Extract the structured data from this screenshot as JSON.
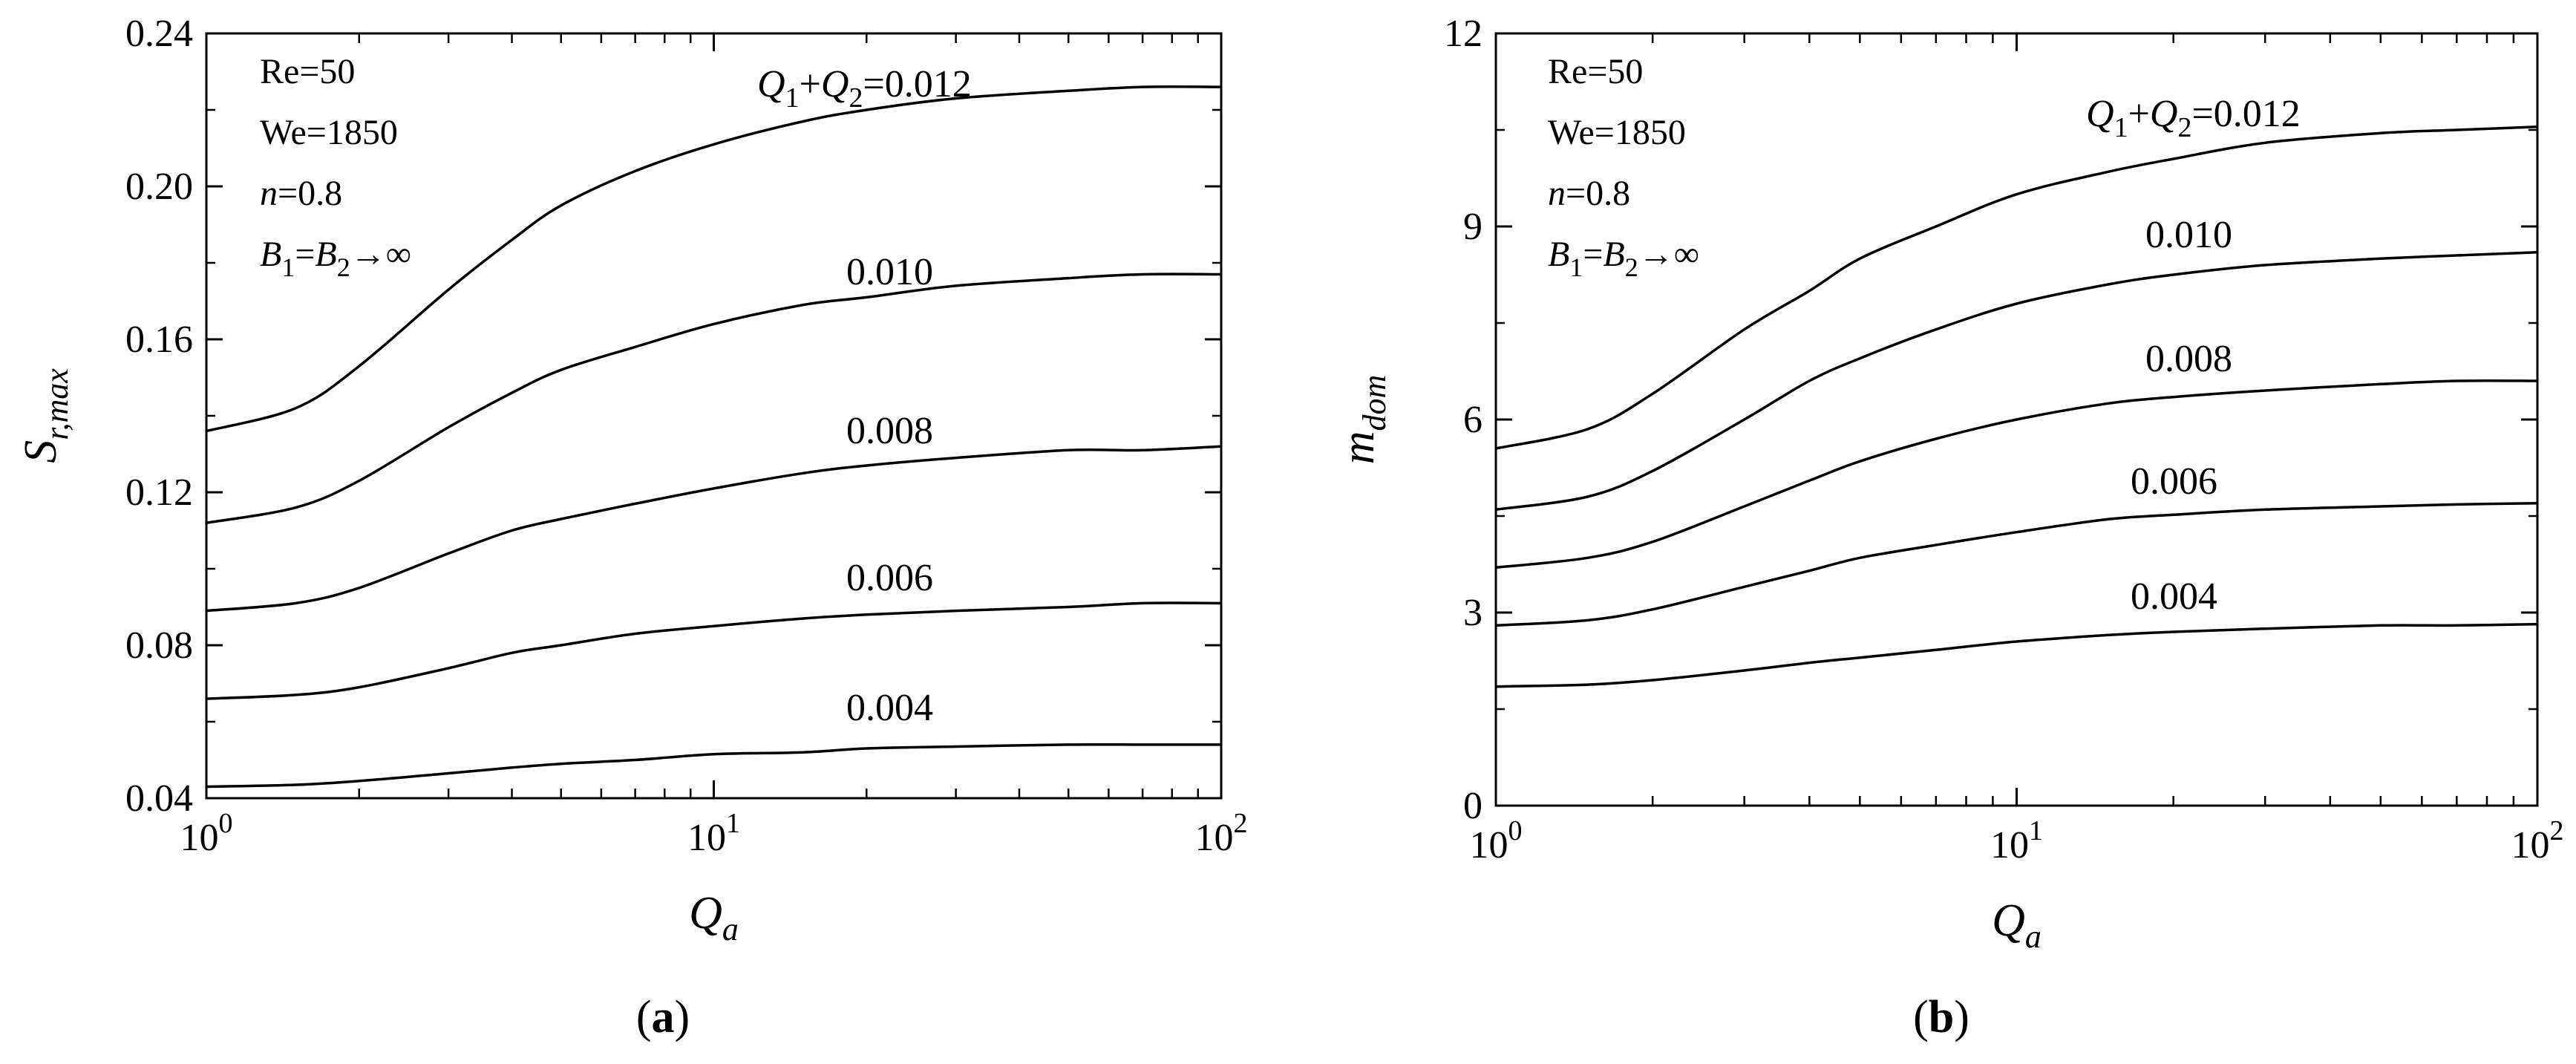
{
  "chart_data": [
    {
      "type": "line",
      "panel": "a",
      "caption": {
        "open": "(",
        "letter": "a",
        "close": ")"
      },
      "xlabel": {
        "main": "Q",
        "sub": "a"
      },
      "ylabel": {
        "main": "S",
        "sub": "r,max"
      },
      "xscale": "log",
      "xlim": [
        1,
        100
      ],
      "ylim": [
        0.04,
        0.24
      ],
      "yticks": [
        "0.04",
        "0.08",
        "0.12",
        "0.16",
        "0.20",
        "0.24"
      ],
      "xticks": [
        {
          "base": "10",
          "exp": "0"
        },
        {
          "base": "10",
          "exp": "1"
        },
        {
          "base": "10",
          "exp": "2"
        }
      ],
      "grid": false,
      "params": {
        "re": "Re=50",
        "we": "We=1850",
        "n_var": "n",
        "n_val": "=0.8",
        "b_var": "B",
        "b1_sub": "1",
        "b_eq": "=",
        "b2_sub": "2",
        "b_arrow": "→∞"
      },
      "series": [
        {
          "label": "0.012",
          "label_prefix": {
            "q": "Q",
            "s1": "1",
            "plus": "+",
            "s2": "2",
            "eq": "="
          },
          "x": [
            1,
            1.5,
            2,
            3,
            4,
            5,
            7,
            10,
            15,
            20,
            30,
            50,
            70,
            100
          ],
          "values": [
            0.136,
            0.142,
            0.153,
            0.173,
            0.186,
            0.195,
            0.204,
            0.211,
            0.217,
            0.22,
            0.223,
            0.225,
            0.226,
            0.226
          ]
        },
        {
          "label": "0.010",
          "x": [
            1,
            1.5,
            2,
            3,
            4,
            5,
            7,
            10,
            15,
            20,
            30,
            50,
            70,
            100
          ],
          "values": [
            0.112,
            0.116,
            0.123,
            0.137,
            0.146,
            0.152,
            0.158,
            0.164,
            0.169,
            0.171,
            0.174,
            0.176,
            0.177,
            0.177
          ]
        },
        {
          "label": "0.008",
          "x": [
            1,
            1.5,
            2,
            3,
            4,
            5,
            7,
            10,
            15,
            20,
            30,
            50,
            70,
            100
          ],
          "values": [
            0.089,
            0.091,
            0.095,
            0.104,
            0.11,
            0.113,
            0.117,
            0.121,
            0.125,
            0.127,
            0.129,
            0.131,
            0.131,
            0.132
          ]
        },
        {
          "label": "0.006",
          "x": [
            1,
            1.5,
            2,
            3,
            4,
            5,
            7,
            10,
            15,
            20,
            30,
            50,
            70,
            100
          ],
          "values": [
            0.066,
            0.067,
            0.069,
            0.074,
            0.078,
            0.08,
            0.083,
            0.085,
            0.087,
            0.088,
            0.089,
            0.09,
            0.091,
            0.091
          ]
        },
        {
          "label": "0.004",
          "x": [
            1,
            1.5,
            2,
            3,
            4,
            5,
            7,
            10,
            15,
            20,
            30,
            50,
            70,
            100
          ],
          "values": [
            0.043,
            0.0435,
            0.0445,
            0.0465,
            0.048,
            0.049,
            0.05,
            0.0515,
            0.052,
            0.053,
            0.0535,
            0.054,
            0.054,
            0.054
          ]
        }
      ]
    },
    {
      "type": "line",
      "panel": "b",
      "caption": {
        "open": "(",
        "letter": "b",
        "close": ")"
      },
      "xlabel": {
        "main": "Q",
        "sub": "a"
      },
      "ylabel": {
        "main": "m",
        "sub": "dom"
      },
      "xscale": "log",
      "xlim": [
        1,
        100
      ],
      "ylim": [
        0,
        12
      ],
      "yticks": [
        "0",
        "3",
        "6",
        "9",
        "12"
      ],
      "xticks": [
        {
          "base": "10",
          "exp": "0"
        },
        {
          "base": "10",
          "exp": "1"
        },
        {
          "base": "10",
          "exp": "2"
        }
      ],
      "grid": false,
      "params": {
        "re": "Re=50",
        "we": "We=1850",
        "n_var": "n",
        "n_val": "=0.8",
        "b_var": "B",
        "b1_sub": "1",
        "b_eq": "=",
        "b2_sub": "2",
        "b_arrow": "→∞"
      },
      "series": [
        {
          "label": "0.012",
          "label_prefix": {
            "q": "Q",
            "s1": "1",
            "plus": "+",
            "s2": "2",
            "eq": "="
          },
          "x": [
            1,
            1.5,
            2,
            3,
            4,
            5,
            7,
            10,
            15,
            20,
            30,
            50,
            70,
            100
          ],
          "values": [
            5.55,
            5.85,
            6.4,
            7.4,
            8.0,
            8.5,
            9.0,
            9.5,
            9.85,
            10.05,
            10.3,
            10.45,
            10.5,
            10.55
          ]
        },
        {
          "label": "0.010",
          "x": [
            1,
            1.5,
            2,
            3,
            4,
            5,
            7,
            10,
            15,
            20,
            30,
            50,
            70,
            100
          ],
          "values": [
            4.6,
            4.8,
            5.2,
            6.0,
            6.6,
            6.95,
            7.4,
            7.8,
            8.1,
            8.25,
            8.4,
            8.5,
            8.55,
            8.6
          ]
        },
        {
          "label": "0.008",
          "x": [
            1,
            1.5,
            2,
            3,
            4,
            5,
            7,
            10,
            15,
            20,
            30,
            50,
            70,
            100
          ],
          "values": [
            3.7,
            3.85,
            4.1,
            4.65,
            5.05,
            5.35,
            5.7,
            6.0,
            6.25,
            6.35,
            6.45,
            6.55,
            6.6,
            6.6
          ]
        },
        {
          "label": "0.006",
          "x": [
            1,
            1.5,
            2,
            3,
            4,
            5,
            7,
            10,
            15,
            20,
            30,
            50,
            70,
            100
          ],
          "values": [
            2.8,
            2.88,
            3.05,
            3.4,
            3.65,
            3.85,
            4.05,
            4.25,
            4.45,
            4.52,
            4.6,
            4.65,
            4.68,
            4.7
          ]
        },
        {
          "label": "0.004",
          "x": [
            1,
            1.5,
            2,
            3,
            4,
            5,
            7,
            10,
            15,
            20,
            30,
            50,
            70,
            100
          ],
          "values": [
            1.85,
            1.88,
            1.95,
            2.1,
            2.22,
            2.3,
            2.42,
            2.55,
            2.65,
            2.7,
            2.75,
            2.8,
            2.8,
            2.82
          ]
        }
      ]
    }
  ]
}
